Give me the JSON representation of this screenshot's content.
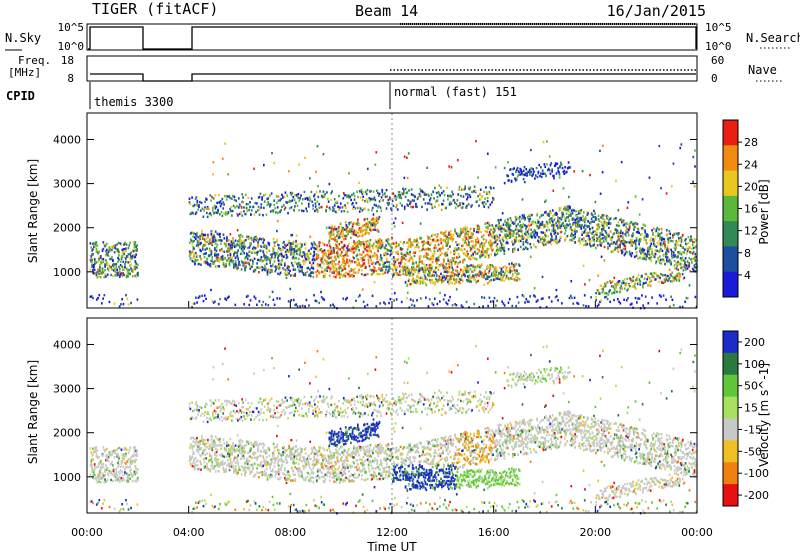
{
  "header": {
    "radar": "TIGER (fitACF)",
    "beam": "Beam 14",
    "date": "16/Jan/2015"
  },
  "status_panels": {
    "nsky_label": "N.Sky",
    "nsky_ticks": [
      "10^5",
      "10^0"
    ],
    "nsearch_label": "N.Search",
    "nsearch_ticks": [
      "10^5",
      "10^0"
    ],
    "freq_label_1": "Freq.",
    "freq_label_2": "[MHz]",
    "freq_ticks": [
      "18",
      "8"
    ],
    "nave_label": "Nave",
    "nave_ticks": [
      "60",
      "0"
    ],
    "cpid_label": "CPID",
    "cpid_segments": [
      {
        "name": "themis 3300",
        "start_hour": 0
      },
      {
        "name": "normal (fast) 151",
        "start_hour": 12
      }
    ],
    "data_gaps_hours": [
      [
        2.0,
        4.0
      ]
    ]
  },
  "chart_data": [
    {
      "type": "heatmap",
      "parameter": "Power",
      "xlabel": "Time UT",
      "ylabel": "Slant Range [km]",
      "xlim": [
        0,
        24
      ],
      "ylim": [
        180,
        4600
      ],
      "ytick_values": [
        1000,
        2000,
        3000,
        4000
      ],
      "colorbar_label": "Power [dB]",
      "colorbar_ticks": [
        "4",
        "8",
        "12",
        "16",
        "20",
        "24",
        "28"
      ],
      "colors": [
        "#1a1ad8",
        "#1d4fa0",
        "#2f8a55",
        "#5cb83a",
        "#e8c81e",
        "#f08a10",
        "#e81e10"
      ]
    },
    {
      "type": "heatmap",
      "parameter": "Velocity",
      "xlabel": "Time UT",
      "ylabel": "Slant Range [km]",
      "xlim": [
        0,
        24
      ],
      "ylim": [
        180,
        4600
      ],
      "ytick_values": [
        1000,
        2000,
        3000,
        4000
      ],
      "colorbar_label": "Velocity [m s^-1]",
      "colorbar_ticks": [
        "200",
        "100",
        "50",
        "15",
        "-15",
        "-50",
        "-100",
        "-200"
      ],
      "colors": [
        "#1a2dc8",
        "#2a7a40",
        "#5ec83a",
        "#a8e060",
        "#c8c8c8",
        "#f0c020",
        "#f08010",
        "#e81010"
      ]
    }
  ],
  "x_axis": {
    "tick_labels": [
      "00:00",
      "04:00",
      "08:00",
      "12:00",
      "16:00",
      "20:00",
      "00:00"
    ],
    "label": "Time UT"
  }
}
